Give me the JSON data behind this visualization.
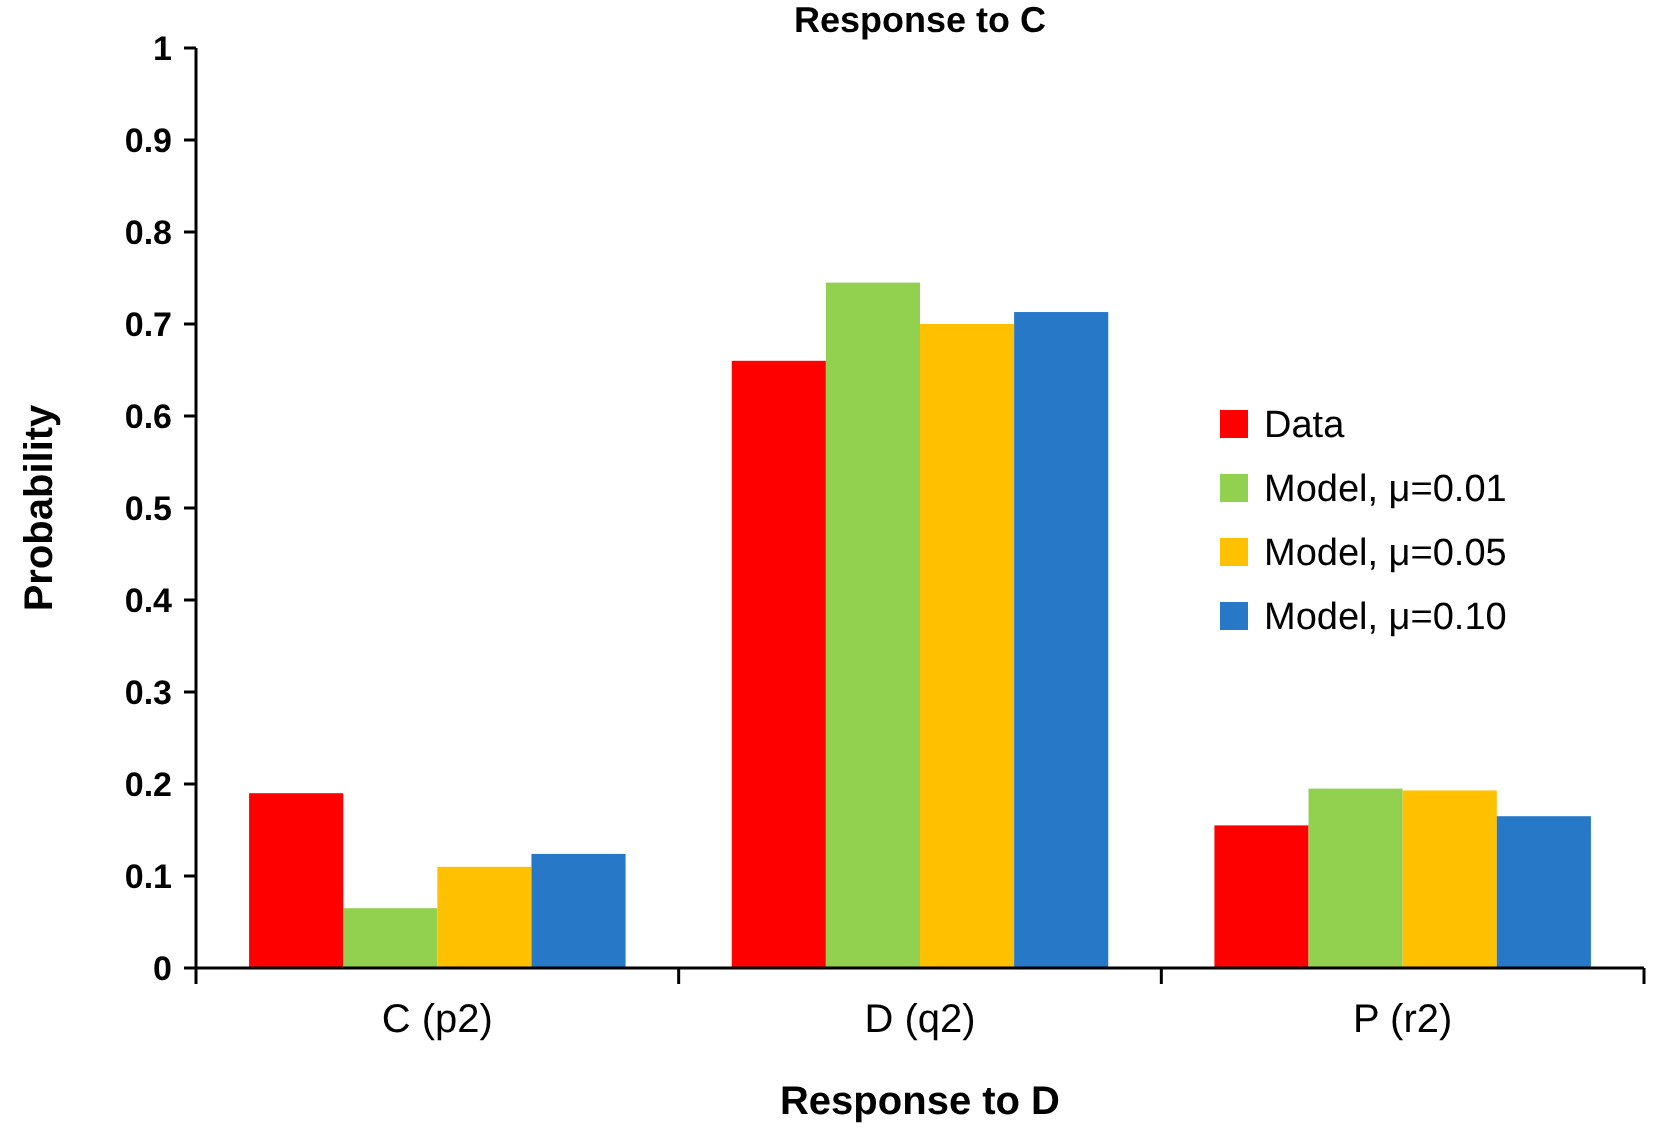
{
  "chart_data": {
    "type": "bar",
    "title": "Response to C",
    "xlabel": "Response to D",
    "ylabel": "Probability",
    "categories": [
      "C (p2)",
      "D (q2)",
      "P (r2)"
    ],
    "series": [
      {
        "name": "Data",
        "color": "#ff0000",
        "values": [
          0.19,
          0.66,
          0.155
        ]
      },
      {
        "name": "Model, μ=0.01",
        "color": "#92d050",
        "values": [
          0.065,
          0.745,
          0.195
        ]
      },
      {
        "name": "Model, μ=0.05",
        "color": "#ffc000",
        "values": [
          0.11,
          0.7,
          0.193
        ]
      },
      {
        "name": "Model, μ=0.10",
        "color": "#2878c8",
        "values": [
          0.124,
          0.713,
          0.165
        ]
      }
    ],
    "ylim": [
      0,
      1
    ],
    "yticks": [
      0,
      0.1,
      0.2,
      0.3,
      0.4,
      0.5,
      0.6,
      0.7,
      0.8,
      0.9,
      1
    ],
    "grid": false,
    "legend": "right"
  }
}
